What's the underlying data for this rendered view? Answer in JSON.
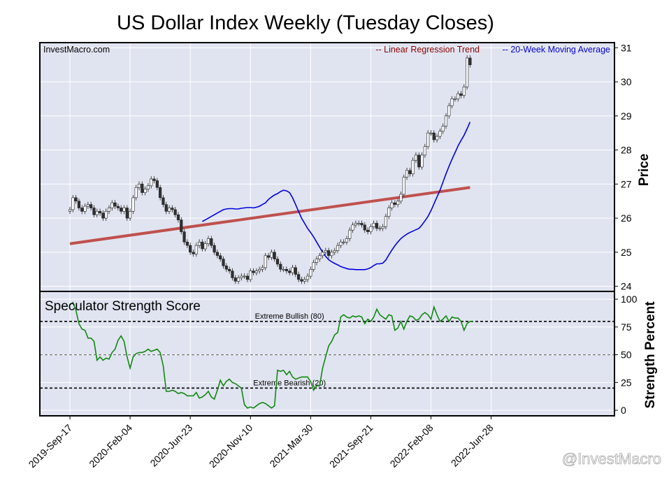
{
  "title": "US Dollar Index Weekly (Tuesday Closes)",
  "watermark_site": "InvestMacro.com",
  "credit": "@InvestMacro",
  "colors": {
    "plot_bg": "#e0e4f0",
    "grid": "#ffffff",
    "regression": "#c0504d",
    "moving_average": "#0000e0",
    "strength_line": "#118811",
    "candle_up": "#ffffff",
    "candle_down": "#303030",
    "legend_regression": "#8b0000",
    "legend_ma": "#0000cc"
  },
  "legend": {
    "regression": "-- Linear Regression Trend",
    "moving_average": "-- 20-Week Moving Average"
  },
  "chart_data": [
    {
      "type": "candlestick",
      "panel": "price",
      "ylabel": "Price",
      "ylim": [
        23.85,
        31.15
      ],
      "yticks": [
        24,
        25,
        26,
        27,
        28,
        29,
        30,
        31
      ],
      "xlim": [
        -10,
        181
      ],
      "xtick_labels": [
        "2019-Sep-17",
        "2020-Feb-04",
        "2020-Jun-23",
        "2020-Nov-10",
        "2021-Mar-30",
        "2021-Sep-21",
        "2022-Feb-08",
        "2022-Jun-28"
      ],
      "xtick_weeks": [
        0,
        20,
        40,
        60,
        80,
        100,
        120,
        140
      ],
      "grid": true,
      "close_series": [
        26.25,
        26.6,
        26.5,
        26.3,
        26.2,
        26.35,
        26.4,
        26.3,
        26.1,
        26.2,
        26.15,
        26.0,
        26.2,
        26.3,
        26.45,
        26.35,
        26.3,
        26.2,
        26.3,
        26.0,
        26.2,
        26.6,
        26.9,
        27.0,
        26.75,
        26.85,
        26.95,
        27.15,
        27.1,
        26.9,
        26.6,
        26.4,
        26.2,
        26.3,
        26.25,
        26.1,
        25.95,
        25.6,
        25.3,
        25.2,
        25.0,
        24.95,
        25.2,
        25.3,
        25.1,
        25.25,
        25.4,
        25.2,
        25.0,
        24.9,
        24.8,
        24.6,
        24.5,
        24.45,
        24.25,
        24.15,
        24.25,
        24.3,
        24.3,
        24.2,
        24.45,
        24.4,
        24.45,
        24.5,
        24.55,
        24.9,
        24.85,
        25.0,
        24.8,
        24.65,
        24.5,
        24.5,
        24.45,
        24.4,
        24.55,
        24.35,
        24.2,
        24.15,
        24.2,
        24.3,
        24.5,
        24.7,
        24.8,
        24.9,
        25.0,
        25.05,
        24.9,
        25.0,
        25.05,
        25.2,
        25.3,
        25.3,
        25.4,
        25.65,
        25.8,
        25.85,
        25.85,
        25.8,
        25.65,
        25.6,
        25.75,
        25.85,
        25.7,
        25.7,
        25.75,
        26.05,
        26.3,
        26.45,
        26.4,
        26.5,
        26.7,
        27.2,
        27.4,
        27.3,
        27.7,
        27.85,
        27.5,
        27.85,
        28.1,
        28.5,
        28.5,
        28.3,
        28.4,
        28.55,
        28.7,
        29.0,
        29.3,
        29.5,
        29.5,
        29.65,
        29.6,
        29.85,
        30.7,
        30.5
      ],
      "regression": {
        "start": 25.25,
        "end": 26.9
      },
      "moving_average": [
        25.9,
        25.95,
        26.0,
        26.05,
        26.1,
        26.15,
        26.2,
        26.25,
        26.27,
        26.28,
        26.28,
        26.27,
        26.27,
        26.29,
        26.3,
        26.31,
        26.31,
        26.3,
        26.32,
        26.35,
        26.4,
        26.45,
        26.55,
        26.62,
        26.68,
        26.72,
        26.78,
        26.82,
        26.8,
        26.75,
        26.6,
        26.4,
        26.2,
        26.0,
        25.85,
        25.7,
        25.58,
        25.45,
        25.3,
        25.15,
        25.0,
        24.88,
        24.78,
        24.72,
        24.67,
        24.63,
        24.58,
        24.55,
        24.52,
        24.5,
        24.5,
        24.49,
        24.49,
        24.49,
        24.49,
        24.51,
        24.55,
        24.61,
        24.66,
        24.66,
        24.68,
        24.77,
        24.92,
        25.06,
        25.19,
        25.3,
        25.4,
        25.47,
        25.53,
        25.58,
        25.62,
        25.66,
        25.7,
        25.8,
        25.92,
        26.05,
        26.22,
        26.42,
        26.62,
        26.82,
        27.06,
        27.3,
        27.52,
        27.73,
        27.92,
        28.12,
        28.28,
        28.43,
        28.62,
        28.82
      ]
    },
    {
      "type": "line",
      "panel": "strength",
      "title": "Speculator Strength Score",
      "ylabel": "Strength Percent",
      "ylim": [
        -5,
        107
      ],
      "yticks": [
        0,
        25,
        50,
        75,
        100
      ],
      "reference_lines": [
        {
          "value": 80,
          "label": "Extreme Bullish (80)"
        },
        {
          "value": 50,
          "label": ""
        },
        {
          "value": 20,
          "label": "Extreme Bearish (20)"
        }
      ],
      "series": [
        {
          "values": [
            95,
            97,
            90,
            78,
            73,
            72,
            65,
            65,
            62,
            45,
            48,
            45,
            47,
            46,
            52,
            55,
            63,
            67,
            62,
            48,
            38,
            48,
            51,
            52,
            52,
            53,
            55,
            53,
            54,
            55,
            52,
            40,
            17,
            17,
            18,
            17,
            15,
            16,
            15,
            13,
            13,
            13,
            16,
            11,
            12,
            14,
            17,
            12,
            10,
            18,
            27,
            22,
            26,
            28,
            25,
            24,
            22,
            20,
            5,
            2,
            3,
            2,
            4,
            6,
            7,
            6,
            4,
            2,
            4,
            36,
            35,
            36,
            32,
            35,
            30,
            28,
            29,
            30,
            30,
            30,
            26,
            18,
            22,
            22,
            38,
            48,
            58,
            62,
            68,
            70,
            84,
            86,
            84,
            83,
            85,
            84,
            85,
            84,
            78,
            82,
            80,
            84,
            91,
            86,
            84,
            82,
            86,
            85,
            72,
            74,
            80,
            73,
            80,
            85,
            84,
            81,
            82,
            86,
            88,
            86,
            82,
            93,
            86,
            80,
            82,
            85,
            80,
            84,
            83,
            83,
            80,
            72,
            78,
            80,
            80
          ]
        }
      ]
    }
  ]
}
